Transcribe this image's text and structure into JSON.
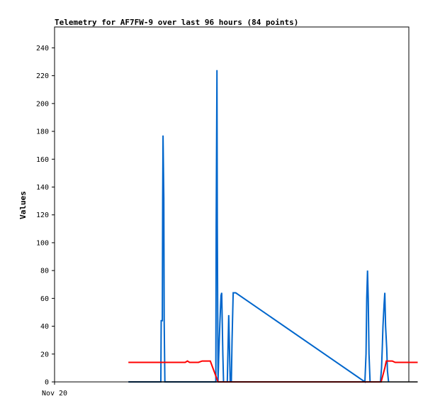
{
  "chart_data": {
    "type": "line",
    "title": "Telemetry for AF7FW-9 over last 96 hours (84 points)",
    "ylabel": "Values",
    "xlabel": "",
    "ylim": [
      0,
      255
    ],
    "yticks": [
      0,
      20,
      40,
      60,
      80,
      100,
      120,
      140,
      160,
      180,
      200,
      220,
      240
    ],
    "xlim": [
      0,
      96
    ],
    "xticks": [
      {
        "label": "Nov 20",
        "x": 0
      }
    ],
    "grid": false,
    "legend": "none",
    "series": [
      {
        "color": "#0066cc",
        "points": [
          [
            20.0,
            0
          ],
          [
            28.8,
            0
          ],
          [
            28.9,
            44
          ],
          [
            29.2,
            44
          ],
          [
            29.3,
            132
          ],
          [
            29.4,
            177
          ],
          [
            29.6,
            132
          ],
          [
            29.7,
            44
          ],
          [
            29.9,
            0
          ],
          [
            43.7,
            0
          ],
          [
            43.8,
            112
          ],
          [
            44.0,
            224
          ],
          [
            44.1,
            112
          ],
          [
            44.3,
            0
          ],
          [
            44.5,
            20
          ],
          [
            44.8,
            42
          ],
          [
            45.1,
            62
          ],
          [
            45.3,
            64
          ],
          [
            45.6,
            20
          ],
          [
            45.8,
            0
          ],
          [
            46.8,
            0
          ],
          [
            47.0,
            24
          ],
          [
            47.2,
            48
          ],
          [
            47.4,
            24
          ],
          [
            47.6,
            0
          ],
          [
            47.9,
            0
          ],
          [
            48.1,
            30
          ],
          [
            48.4,
            64
          ],
          [
            49.1,
            64
          ],
          [
            84.1,
            0
          ],
          [
            84.4,
            20
          ],
          [
            84.6,
            60
          ],
          [
            84.8,
            80
          ],
          [
            85.0,
            60
          ],
          [
            85.2,
            20
          ],
          [
            85.5,
            0
          ],
          [
            88.3,
            0
          ],
          [
            88.6,
            10
          ],
          [
            88.8,
            24
          ],
          [
            89.0,
            40
          ],
          [
            89.3,
            56
          ],
          [
            89.5,
            64
          ],
          [
            89.7,
            40
          ],
          [
            90.0,
            24
          ],
          [
            90.2,
            8
          ],
          [
            90.5,
            0
          ]
        ]
      },
      {
        "color": "#ff0000",
        "points": [
          [
            20.0,
            14
          ],
          [
            35.4,
            14
          ],
          [
            36.0,
            15
          ],
          [
            36.6,
            14
          ],
          [
            39.0,
            14
          ],
          [
            40.0,
            15
          ],
          [
            42.2,
            15
          ],
          [
            44.3,
            0
          ],
          [
            88.5,
            0
          ],
          [
            89.5,
            10
          ],
          [
            89.9,
            15
          ],
          [
            91.5,
            15
          ],
          [
            92.3,
            14
          ],
          [
            98.4,
            14
          ]
        ]
      },
      {
        "color": "#000000",
        "points": [
          [
            20.0,
            0
          ],
          [
            98.4,
            0
          ]
        ]
      }
    ]
  }
}
